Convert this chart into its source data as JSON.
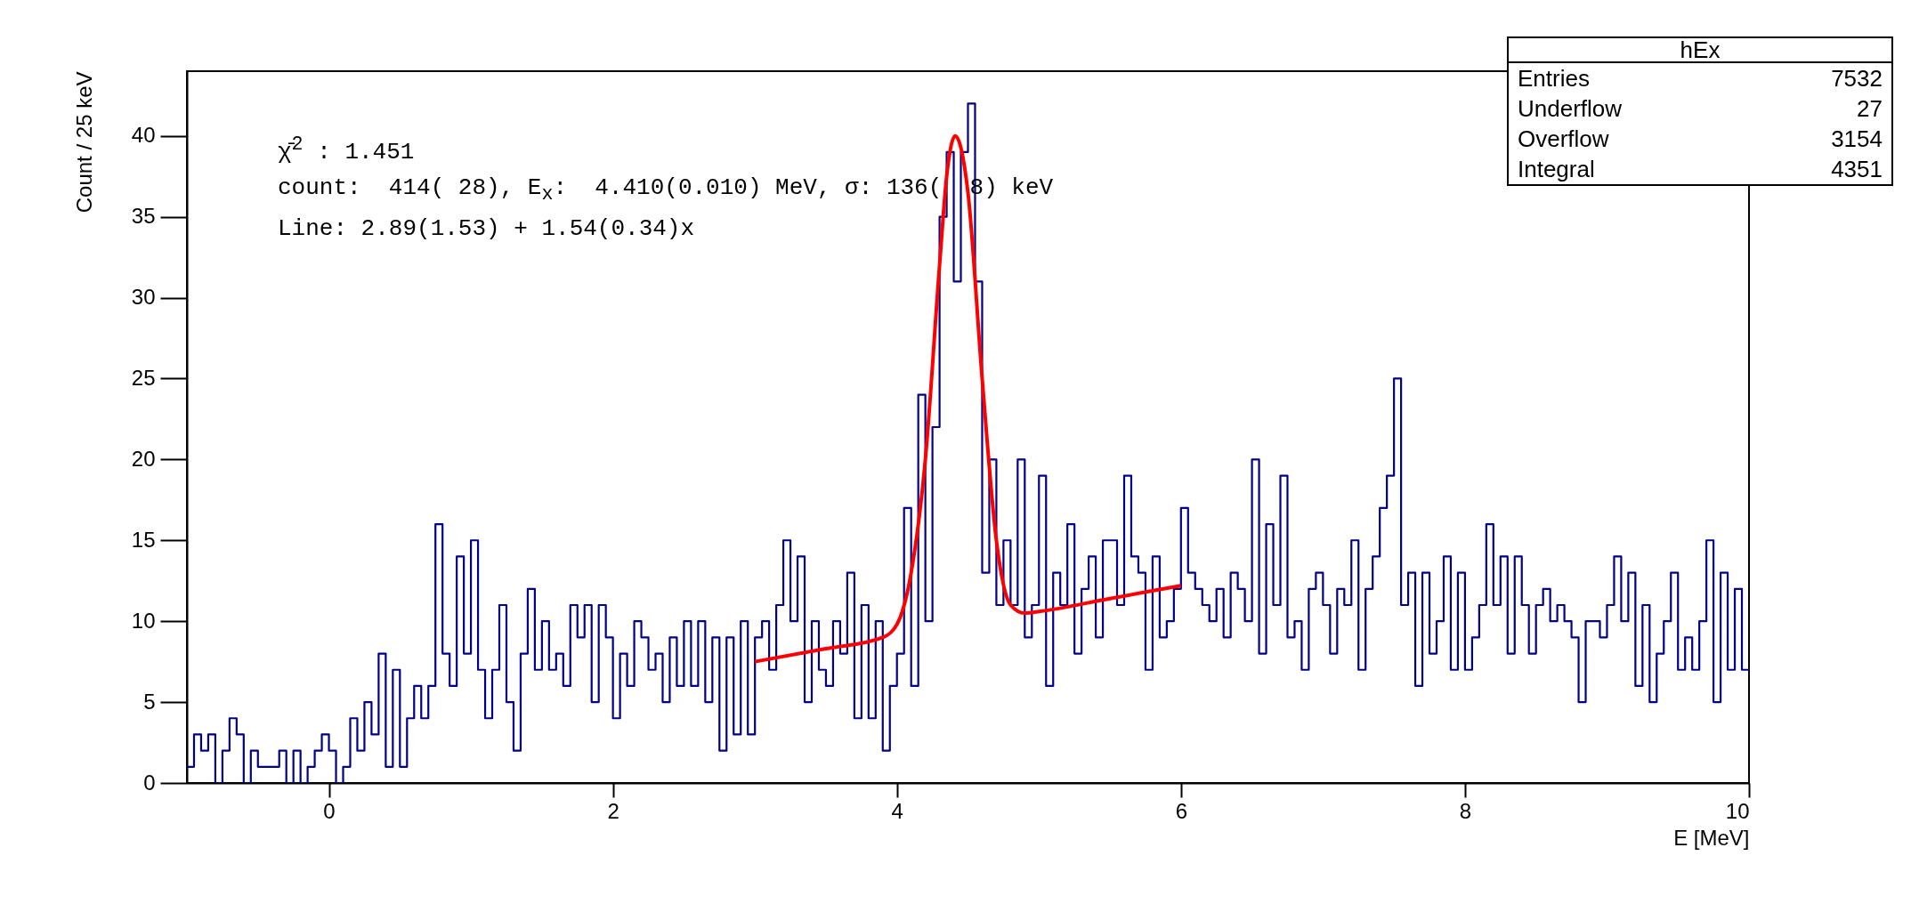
{
  "chart_data": {
    "type": "step",
    "xlabel": "E [MeV]",
    "ylabel": "Count /  25 keV",
    "xlim": [
      -1,
      10
    ],
    "ylim": [
      0,
      44
    ],
    "xticks": [
      0,
      2,
      4,
      6,
      8,
      10
    ],
    "yticks": [
      0,
      5,
      10,
      15,
      20,
      25,
      30,
      35,
      40
    ],
    "grid": false,
    "annotations": [
      "χ̄$^{2}$ : 1.451",
      "count:  414( 28), E$_{x}$:  4.410(0.010) MeV, σ: 136(  8) keV",
      "Line: 2.89(1.53) + 1.54(0.34)x",
      "hEx",
      "Entries",
      "7532",
      "Underflow",
      "27",
      "Overflow",
      "3154",
      "Integral",
      "4351"
    ],
    "series": [
      {
        "color": "#00008b",
        "x": [
          -1,
          -0.95,
          -0.9,
          -0.85,
          -0.8,
          -0.75,
          -0.7,
          -0.65,
          -0.6,
          -0.55,
          -0.5,
          -0.45,
          -0.4,
          -0.35,
          -0.3,
          -0.25,
          -0.2,
          -0.15,
          -0.1,
          -0.05,
          0,
          0.05,
          0.1,
          0.15,
          0.2,
          0.25,
          0.3,
          0.35,
          0.4,
          0.45,
          0.5,
          0.55,
          0.6,
          0.65,
          0.7,
          0.75,
          0.8,
          0.85,
          0.9,
          0.95,
          1,
          1.05,
          1.1,
          1.15,
          1.2,
          1.25,
          1.3,
          1.35,
          1.4,
          1.45,
          1.5,
          1.55,
          1.6,
          1.65,
          1.7,
          1.75,
          1.8,
          1.85,
          1.9,
          1.95,
          2,
          2.05,
          2.1,
          2.15,
          2.2,
          2.25,
          2.3,
          2.35,
          2.4,
          2.45,
          2.5,
          2.55,
          2.6,
          2.65,
          2.7,
          2.75,
          2.8,
          2.85,
          2.9,
          2.95,
          3,
          3.05,
          3.1,
          3.15,
          3.2,
          3.25,
          3.3,
          3.35,
          3.4,
          3.45,
          3.5,
          3.55,
          3.6,
          3.65,
          3.7,
          3.75,
          3.8,
          3.85,
          3.9,
          3.95,
          4,
          4.05,
          4.1,
          4.15,
          4.2,
          4.25,
          4.3,
          4.35,
          4.4,
          4.45,
          4.5,
          4.55,
          4.6,
          4.65,
          4.7,
          4.75,
          4.8,
          4.85,
          4.9,
          4.95,
          5,
          5.05,
          5.1,
          5.15,
          5.2,
          5.25,
          5.3,
          5.35,
          5.4,
          5.45,
          5.5,
          5.55,
          5.6,
          5.65,
          5.7,
          5.75,
          5.8,
          5.85,
          5.9,
          5.95,
          6,
          6.05,
          6.1,
          6.15,
          6.2,
          6.25,
          6.3,
          6.35,
          6.4,
          6.45,
          6.5,
          6.55,
          6.6,
          6.65,
          6.7,
          6.75,
          6.8,
          6.85,
          6.9,
          6.95,
          7,
          7.05,
          7.1,
          7.15,
          7.2,
          7.25,
          7.3,
          7.35,
          7.4,
          7.45,
          7.5,
          7.55,
          7.6,
          7.65,
          7.7,
          7.75,
          7.8,
          7.85,
          7.9,
          7.95,
          8,
          8.05,
          8.1,
          8.15,
          8.2,
          8.25,
          8.3,
          8.35,
          8.4,
          8.45,
          8.5,
          8.55,
          8.6,
          8.65,
          8.7,
          8.75,
          8.8,
          8.85,
          8.9,
          8.95,
          9,
          9.05,
          9.1,
          9.15,
          9.2,
          9.25,
          9.3,
          9.35,
          9.4,
          9.45,
          9.5,
          9.55,
          9.6,
          9.65,
          9.7,
          9.75,
          9.8,
          9.85,
          9.9,
          9.95,
          10
        ],
        "values": [
          1,
          3,
          2,
          3,
          0,
          2,
          4,
          3,
          0,
          2,
          1,
          1,
          1,
          2,
          0,
          2,
          0,
          1,
          2,
          3,
          2,
          0,
          1,
          4,
          2,
          5,
          3,
          8,
          1,
          7,
          1,
          4,
          6,
          4,
          6,
          16,
          8,
          6,
          14,
          8,
          15,
          7,
          4,
          7,
          11,
          5,
          2,
          8,
          12,
          7,
          10,
          7,
          8,
          6,
          11,
          9,
          11,
          5,
          11,
          9,
          4,
          8,
          6,
          10,
          9,
          7,
          8,
          5,
          9,
          6,
          10,
          6,
          10,
          5,
          9,
          2,
          9,
          3,
          10,
          3,
          9,
          10,
          7,
          11,
          15,
          10,
          14,
          5,
          10,
          7,
          6,
          10,
          8,
          13,
          4,
          11,
          4,
          10,
          2,
          6,
          8,
          17,
          6,
          24,
          10,
          22,
          35,
          39,
          31,
          39,
          42,
          31,
          13,
          20,
          11,
          15,
          11,
          20,
          9,
          11,
          19,
          6,
          13,
          11,
          16,
          8,
          12,
          14,
          9,
          15,
          15,
          11,
          19,
          14,
          13,
          7,
          14,
          9,
          10,
          12,
          17,
          13,
          12,
          11,
          10,
          12,
          9,
          13,
          12,
          10,
          20,
          8,
          16,
          11,
          19,
          9,
          10,
          7,
          12,
          13,
          11,
          8,
          12,
          11,
          15,
          7,
          12,
          14,
          17,
          19,
          25,
          11,
          13,
          6,
          13,
          8,
          10,
          14,
          7,
          13,
          7,
          9,
          11,
          16,
          11,
          14,
          8,
          14,
          11,
          8,
          11,
          12,
          10,
          11,
          10,
          9,
          5,
          10,
          10,
          9,
          11,
          14,
          10,
          13,
          6,
          11,
          5,
          8,
          10,
          13,
          7,
          9,
          7,
          10,
          15,
          5,
          13,
          7,
          12,
          7,
          7
        ]
      },
      {
        "type": "line",
        "color": "#ff0000",
        "x": [
          3,
          3.5,
          3.9,
          4,
          4.1,
          4.2,
          4.3,
          4.35,
          4.41,
          4.5,
          4.6,
          4.7,
          4.8,
          4.9,
          5,
          5.5,
          6
        ],
        "values": [
          7.5,
          8.3,
          9,
          9.8,
          13,
          20,
          32,
          37.5,
          40,
          36.5,
          25,
          15,
          11,
          10.5,
          10.6,
          11.4,
          12.2
        ]
      }
    ]
  }
}
